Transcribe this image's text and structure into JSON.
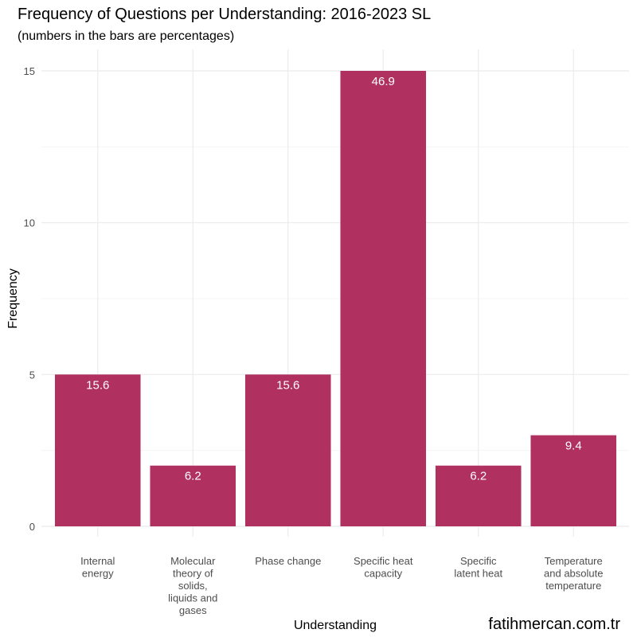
{
  "chart_data": {
    "type": "bar",
    "title": "Frequency of Questions per Understanding: 2016-2023 SL",
    "subtitle": "(numbers in the bars are percentages)",
    "xlabel": "Understanding",
    "ylabel": "Frequency",
    "categories": [
      [
        "Internal",
        "energy"
      ],
      [
        "Molecular",
        "theory of",
        "solids,",
        "liquids and",
        "gases"
      ],
      [
        "Phase change"
      ],
      [
        "Specific heat",
        "capacity"
      ],
      [
        "Specific",
        "latent heat"
      ],
      [
        "Temperature",
        "and absolute",
        "temperature"
      ]
    ],
    "values": [
      5,
      2,
      5,
      15,
      2,
      3
    ],
    "bar_labels": [
      "15.6",
      "6.2",
      "15.6",
      "46.9",
      "6.2",
      "9.4"
    ],
    "ylim": [
      0,
      15
    ],
    "yticks": [
      0,
      5,
      10,
      15
    ],
    "grid": true,
    "bar_color": "#b03060",
    "watermark": "fatihmercan.com.tr"
  }
}
